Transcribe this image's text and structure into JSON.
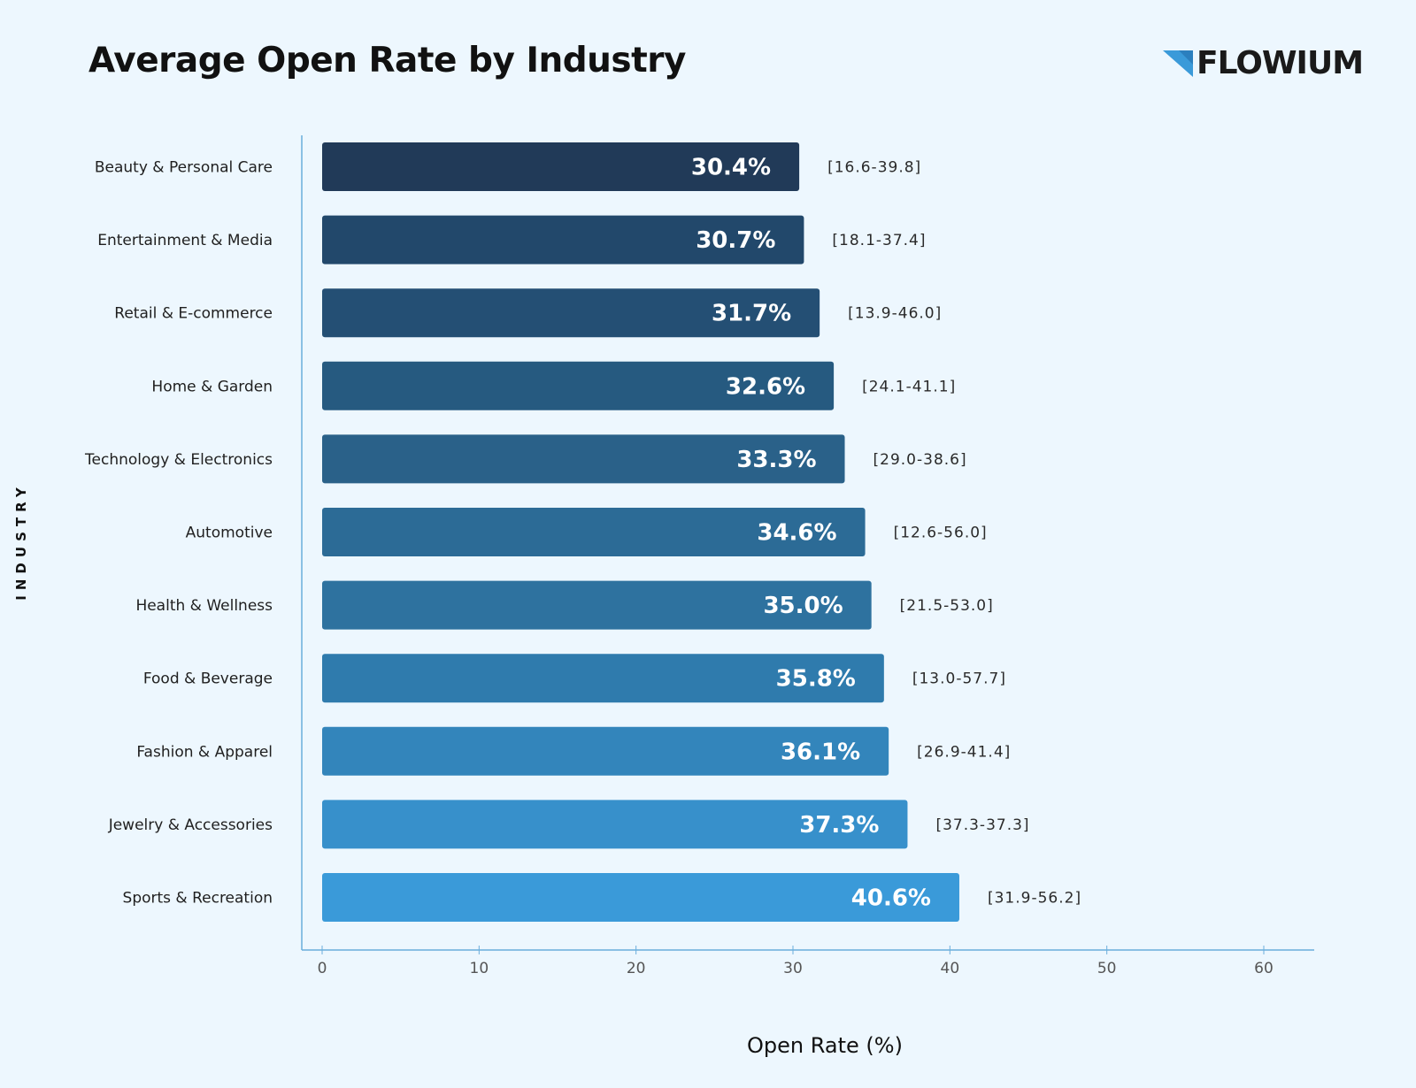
{
  "brand": {
    "name": "FLOWIUM",
    "logo_icon": "triangle-flag-icon",
    "accent_color": "#3a9ad9"
  },
  "chart_data": {
    "type": "bar",
    "orientation": "horizontal",
    "title": "Average Open Rate by Industry",
    "xlabel": "Open Rate (%)",
    "ylabel": "INDUSTRY",
    "xlim": [
      0,
      60
    ],
    "xticks": [
      0,
      10,
      20,
      30,
      40,
      50,
      60
    ],
    "grid": false,
    "legend": "none",
    "categories": [
      "Beauty & Personal Care",
      "Entertainment & Media",
      "Retail & E-commerce",
      "Home & Garden",
      "Technology & Electronics",
      "Automotive",
      "Health & Wellness",
      "Food & Beverage",
      "Fashion & Apparel",
      "Jewelry & Accessories",
      "Sports & Recreation"
    ],
    "values": [
      30.4,
      30.7,
      31.7,
      32.6,
      33.3,
      34.6,
      35.0,
      35.8,
      36.1,
      37.3,
      40.6
    ],
    "value_labels": [
      "30.4%",
      "30.7%",
      "31.7%",
      "32.6%",
      "33.3%",
      "34.6%",
      "35.0%",
      "35.8%",
      "36.1%",
      "37.3%",
      "40.6%"
    ],
    "ranges": [
      [
        16.6,
        39.8
      ],
      [
        18.1,
        37.4
      ],
      [
        13.9,
        46.0
      ],
      [
        24.1,
        41.1
      ],
      [
        29.0,
        38.6
      ],
      [
        12.6,
        56.0
      ],
      [
        21.5,
        53.0
      ],
      [
        13.0,
        57.7
      ],
      [
        26.9,
        41.4
      ],
      [
        37.3,
        37.3
      ],
      [
        31.9,
        56.2
      ]
    ],
    "range_labels": [
      "[16.6-39.8]",
      "[18.1-37.4]",
      "[13.9-46.0]",
      "[24.1-41.1]",
      "[29.0-38.6]",
      "[12.6-56.0]",
      "[21.5-53.0]",
      "[13.0-57.7]",
      "[26.9-41.4]",
      "[37.3-37.3]",
      "[31.9-56.2]"
    ],
    "colors": [
      "#213a58",
      "#22486b",
      "#244f74",
      "#265a80",
      "#2a6189",
      "#2c6b96",
      "#2e729f",
      "#2f7bad",
      "#3385bb",
      "#3790cb",
      "#3a9ad9"
    ],
    "axis_color": "#6aaedc"
  }
}
